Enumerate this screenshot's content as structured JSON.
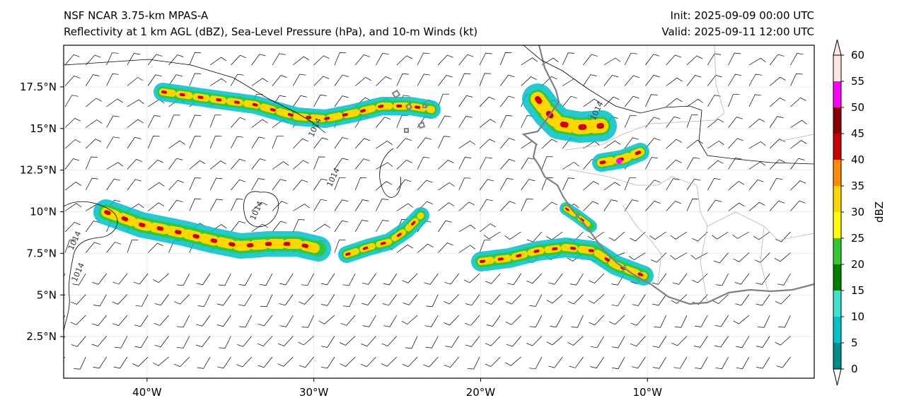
{
  "header": {
    "left_line1": "NSF NCAR 3.75-km MPAS-A",
    "left_line2": "Reflectivity at 1 km AGL (dBZ), Sea-Level Pressure (hPa), and 10-m Winds (kt)",
    "right_line1": "Init: 2025-09-09 00:00 UTC",
    "right_line2": "Valid: 2025-09-11 12:00 UTC"
  },
  "map": {
    "lon_range": [
      -45,
      0
    ],
    "lat_range": [
      0,
      20
    ],
    "lat_ticks": [
      {
        "value": 2.5,
        "label": "2.5°N"
      },
      {
        "value": 5,
        "label": "5°N"
      },
      {
        "value": 7.5,
        "label": "7.5°N"
      },
      {
        "value": 10,
        "label": "10°N"
      },
      {
        "value": 12.5,
        "label": "12.5°N"
      },
      {
        "value": 15,
        "label": "15°N"
      },
      {
        "value": 17.5,
        "label": "17.5°N"
      }
    ],
    "lon_ticks": [
      {
        "value": -40,
        "label": "40°W"
      },
      {
        "value": -30,
        "label": "30°W"
      },
      {
        "value": -20,
        "label": "20°W"
      },
      {
        "value": -10,
        "label": "10°W"
      }
    ],
    "isobar_labels": [
      {
        "text": "1014",
        "lon": -28.7,
        "lat": 12.0
      },
      {
        "text": "1014",
        "lon": -29.8,
        "lat": 15.0
      },
      {
        "text": "1014",
        "lon": -12.9,
        "lat": 16.0
      },
      {
        "text": "1014",
        "lon": -44.2,
        "lat": 8.2
      },
      {
        "text": "1014",
        "lon": -44.0,
        "lat": 6.3
      },
      {
        "text": "1014",
        "lon": -33.3,
        "lat": 10.0
      }
    ]
  },
  "colorbar": {
    "label": "dBZ",
    "ticks": [
      "0",
      "5",
      "10",
      "15",
      "20",
      "25",
      "30",
      "35",
      "40",
      "45",
      "50",
      "55",
      "60"
    ],
    "colors": [
      "#008b8b",
      "#00c0c8",
      "#40e0d0",
      "#008000",
      "#32c832",
      "#ffff00",
      "#ffd700",
      "#ff8c00",
      "#cc0000",
      "#8b0000",
      "#ff00ff",
      "#ffe4e1"
    ]
  }
}
